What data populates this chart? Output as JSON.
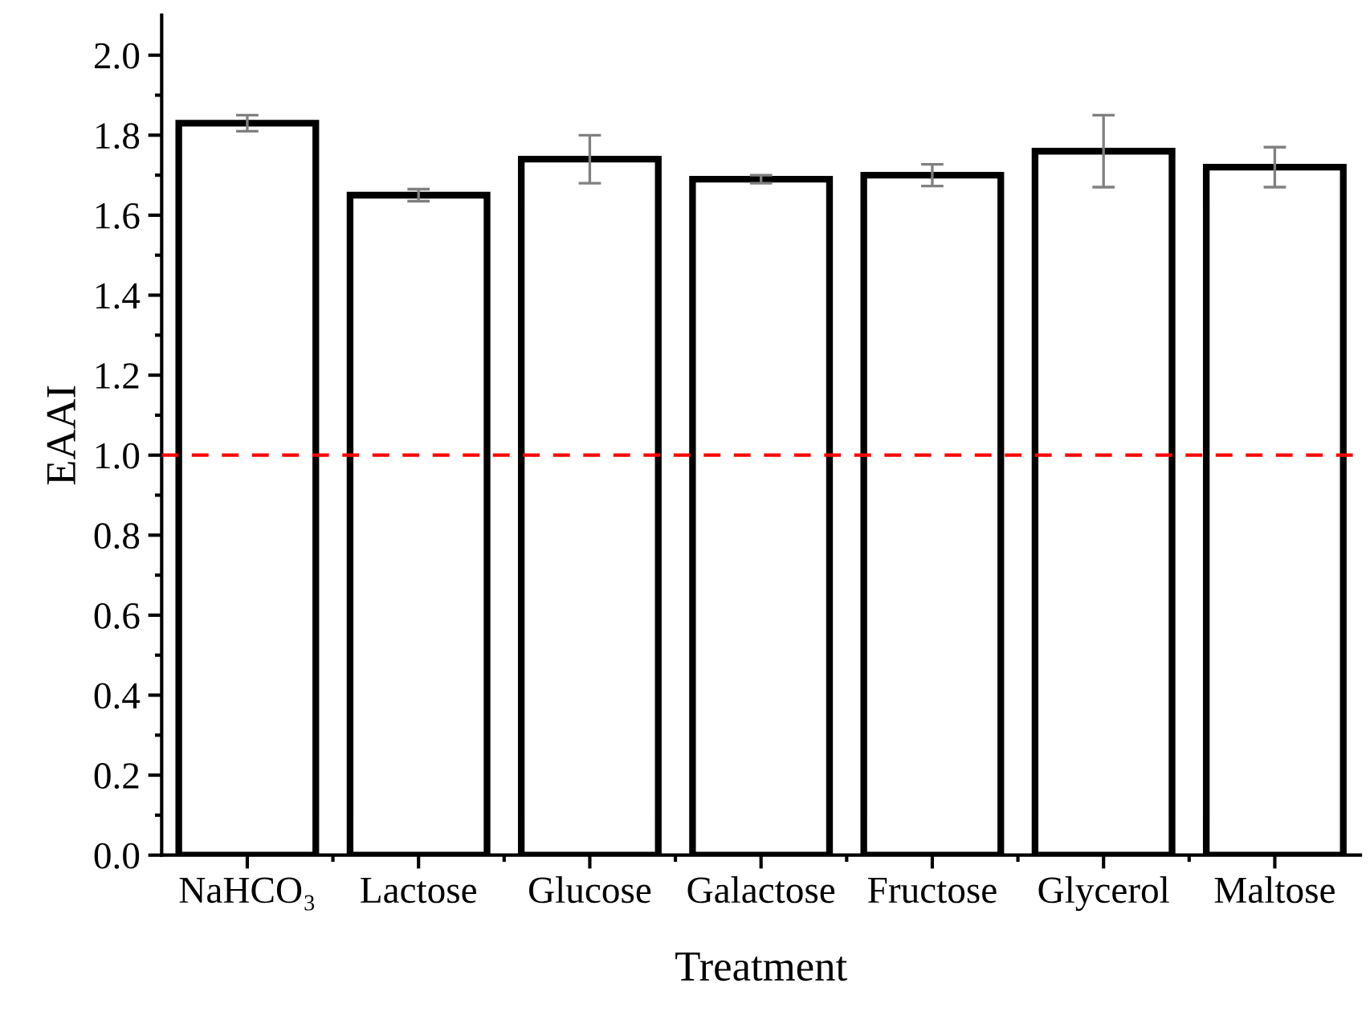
{
  "chart_data": {
    "type": "bar",
    "xlabel": "Treatment",
    "ylabel": "EAAI",
    "categories": [
      "NaHCO₃",
      "Lactose",
      "Glucose",
      "Galactose",
      "Fructose",
      "Glycerol",
      "Maltose"
    ],
    "values": [
      1.83,
      1.65,
      1.74,
      1.69,
      1.7,
      1.76,
      1.72
    ],
    "errors": [
      0.02,
      0.015,
      0.06,
      0.01,
      0.027,
      0.09,
      0.05
    ],
    "color": "#ffffff",
    "ylim": [
      0,
      2.1
    ],
    "yticks": [
      {
        "value": 0,
        "label": "0.0"
      },
      0.2,
      0.4,
      0.6,
      0.8,
      {
        "value": 1,
        "label": "1.0"
      },
      1.2,
      1.4,
      1.6,
      1.8,
      {
        "value": 2,
        "label": "2.0"
      }
    ],
    "ref_lines": [
      {
        "axis": "y",
        "value": 1.0,
        "color": "#ff0000",
        "line_style": "dashed"
      }
    ],
    "grid": false,
    "legend": false
  }
}
